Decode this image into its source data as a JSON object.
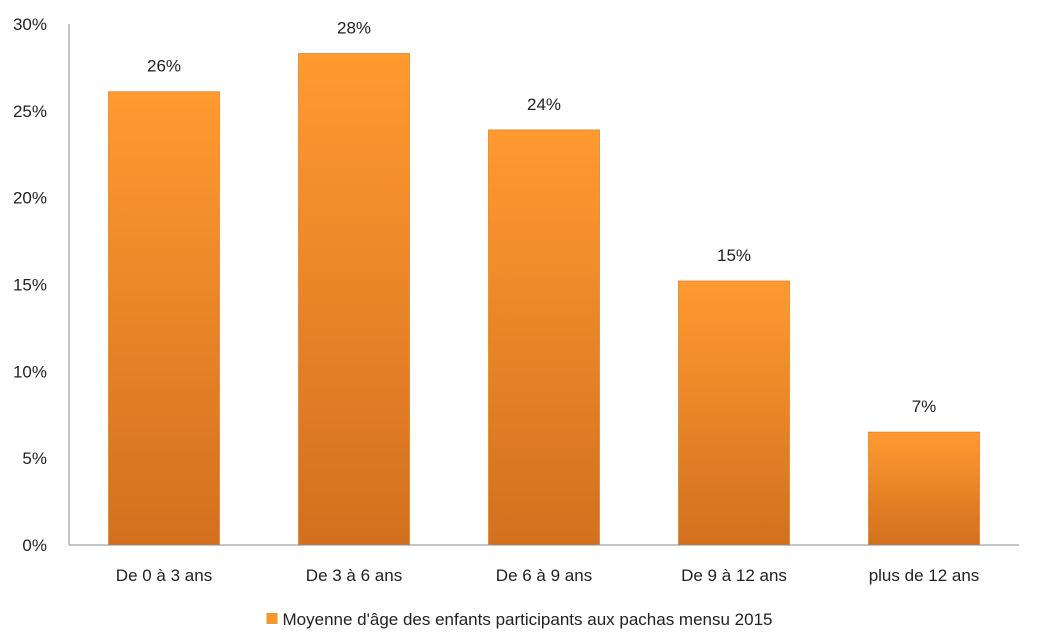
{
  "chart_data": {
    "type": "bar",
    "categories": [
      "De 0 à 3 ans",
      "De 3 à 6 ans",
      "De 6 à 9 ans",
      "De 9 à 12 ans",
      "plus de 12 ans"
    ],
    "series": [
      {
        "name": "Moyenne d'âge des enfants participants aux pachas mensu 2015",
        "values": [
          26.1,
          28.3,
          23.9,
          15.2,
          6.5
        ],
        "data_labels": [
          "26%",
          "28%",
          "24%",
          "15%",
          "7%"
        ],
        "color": "#f7962d"
      }
    ],
    "ylim": [
      0,
      30
    ],
    "yticks": [
      0,
      5,
      10,
      15,
      20,
      25,
      30
    ],
    "ytick_labels": [
      "0%",
      "5%",
      "10%",
      "15%",
      "20%",
      "25%",
      "30%"
    ],
    "grid": false,
    "legend": {
      "position": "bottom",
      "label": "Moyenne d'âge des enfants participants aux pachas mensu 2015",
      "color": "#f7962d"
    },
    "colors": {
      "bar_top": "#ff9a30",
      "bar_bottom": "#d2701f",
      "axis": "#8c8c8c"
    }
  }
}
